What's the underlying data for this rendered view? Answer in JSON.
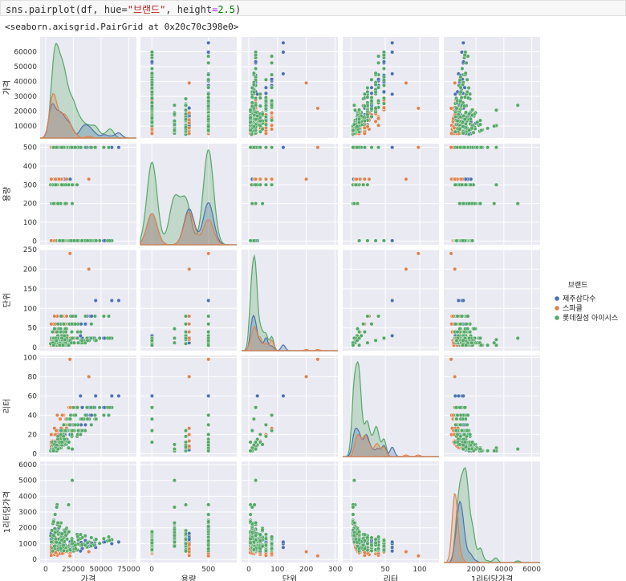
{
  "cell": {
    "code_prefix": "sns.pairplot(df, hue=",
    "code_hue": "\"브랜드\"",
    "code_mid": ", height",
    "code_eq": "=",
    "code_num": "2.5",
    "code_suffix": ")",
    "output": "<seaborn.axisgrid.PairGrid at 0x20c70c398e0>"
  },
  "chart_data": {
    "type": "scatter",
    "variables": [
      "가격",
      "용량",
      "단위",
      "리터",
      "1리터당가격"
    ],
    "tick_labels": [
      [
        "0",
        "25000",
        "50000",
        "75000"
      ],
      [
        "0",
        "500"
      ],
      [
        "0",
        "100",
        "200",
        "300"
      ],
      [
        "0",
        "50",
        "100"
      ],
      [
        "2000",
        "4000",
        "6000"
      ]
    ],
    "y_tick_labels": [
      [
        "10000",
        "20000",
        "30000",
        "40000",
        "50000",
        "60000"
      ],
      [
        "0",
        "100",
        "200",
        "300",
        "400",
        "500"
      ],
      [
        "0",
        "50",
        "100",
        "150",
        "200",
        "250"
      ],
      [
        "0",
        "20",
        "40",
        "60",
        "80",
        "100"
      ],
      [
        "0",
        "1000",
        "2000",
        "3000",
        "4000",
        "5000",
        "6000"
      ]
    ],
    "legend": {
      "title": "브랜드",
      "placement": "right",
      "entries": [
        "제주삼다수",
        "스파클",
        "롯데칠성 아이시스"
      ],
      "colors": [
        "#4c72b0",
        "#dd8452",
        "#55a868"
      ]
    },
    "grid": true,
    "background": "#eaeaf2",
    "diagonal": "kde"
  }
}
